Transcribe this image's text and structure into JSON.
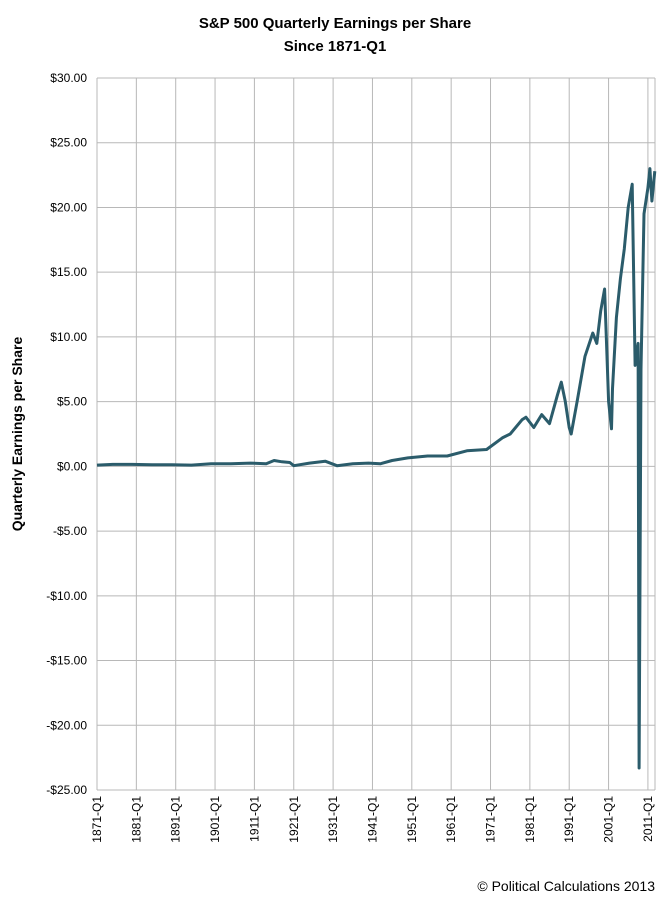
{
  "chart_data": {
    "type": "line",
    "title": "S&P 500 Quarterly Earnings per Share",
    "subtitle": "Since 1871-Q1",
    "y_label": "Quarterly Earnings per Share",
    "annotation": "© Political Calculations 2013",
    "color": "#2b5c6b",
    "grid": true,
    "x": [
      1871,
      1875,
      1880,
      1885,
      1890,
      1895,
      1900,
      1905,
      1910,
      1914,
      1916,
      1918,
      1920,
      1921,
      1925,
      1929,
      1932,
      1936,
      1940,
      1943,
      1946,
      1950,
      1955,
      1960,
      1965,
      1970,
      1974,
      1976,
      1979,
      1980,
      1982,
      1984,
      1986,
      1988,
      1989,
      1990,
      1991,
      1991.5,
      1993,
      1995,
      1997,
      1998,
      1999,
      2000,
      2001,
      2001.75,
      2002,
      2003,
      2004,
      2005,
      2006,
      2007,
      2007.75,
      2008.5,
      2008.75,
      2009.25,
      2010,
      2011,
      2011.5,
      2012,
      2012.75
    ],
    "values": [
      0.1,
      0.15,
      0.15,
      0.12,
      0.12,
      0.1,
      0.2,
      0.2,
      0.25,
      0.2,
      0.45,
      0.35,
      0.3,
      0.05,
      0.25,
      0.4,
      0.05,
      0.2,
      0.25,
      0.2,
      0.45,
      0.65,
      0.8,
      0.8,
      1.2,
      1.3,
      2.2,
      2.5,
      3.6,
      3.8,
      3.0,
      4.0,
      3.3,
      5.5,
      6.5,
      5.0,
      3.0,
      2.5,
      5.0,
      8.5,
      10.3,
      9.5,
      12.0,
      13.7,
      5.0,
      2.9,
      6.0,
      11.5,
      14.5,
      16.8,
      20.0,
      21.8,
      7.8,
      9.5,
      -23.3,
      7.5,
      19.5,
      21.5,
      23.0,
      20.5,
      22.8
    ],
    "xlim": [
      1871,
      2012.8
    ],
    "xticks": [
      {
        "value": 1871,
        "label": "1871-Q1"
      },
      {
        "value": 1881,
        "label": "1881-Q1"
      },
      {
        "value": 1891,
        "label": "1891-Q1"
      },
      {
        "value": 1901,
        "label": "1901-Q1"
      },
      {
        "value": 1911,
        "label": "1911-Q1"
      },
      {
        "value": 1921,
        "label": "1921-Q1"
      },
      {
        "value": 1931,
        "label": "1931-Q1"
      },
      {
        "value": 1941,
        "label": "1941-Q1"
      },
      {
        "value": 1951,
        "label": "1951-Q1"
      },
      {
        "value": 1961,
        "label": "1961-Q1"
      },
      {
        "value": 1971,
        "label": "1971-Q1"
      },
      {
        "value": 1981,
        "label": "1981-Q1"
      },
      {
        "value": 1991,
        "label": "1991-Q1"
      },
      {
        "value": 2001,
        "label": "2001-Q1"
      },
      {
        "value": 2011,
        "label": "2011-Q1"
      }
    ],
    "ylim": [
      -25,
      30
    ],
    "yticks": [
      {
        "value": 30,
        "label": "$30.00"
      },
      {
        "value": 25,
        "label": "$25.00"
      },
      {
        "value": 20,
        "label": "$20.00"
      },
      {
        "value": 15,
        "label": "$15.00"
      },
      {
        "value": 10,
        "label": "$10.00"
      },
      {
        "value": 5,
        "label": "$5.00"
      },
      {
        "value": 0,
        "label": "$0.00"
      },
      {
        "value": -5,
        "label": "-$5.00"
      },
      {
        "value": -10,
        "label": "-$10.00"
      },
      {
        "value": -15,
        "label": "-$15.00"
      },
      {
        "value": -20,
        "label": "-$20.00"
      },
      {
        "value": -25,
        "label": "-$25.00"
      }
    ]
  }
}
